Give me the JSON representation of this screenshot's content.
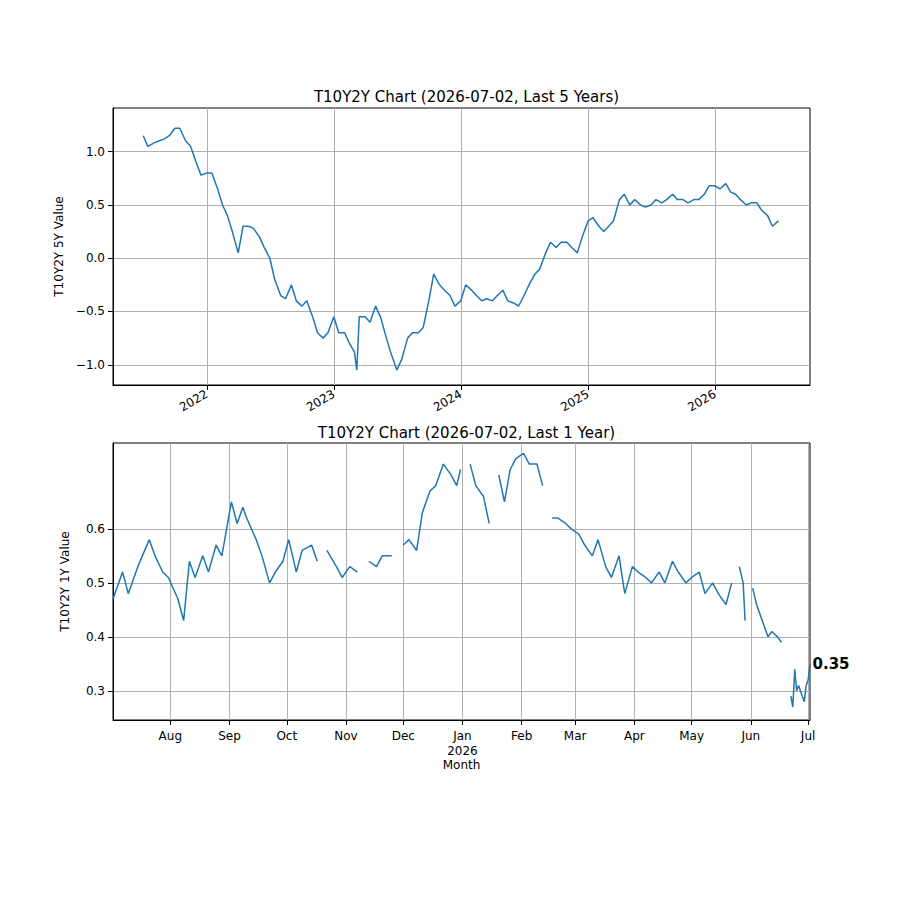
{
  "chart_data": [
    {
      "type": "line",
      "title": "T10Y2Y Chart (2026-07-02, Last 5 Years)",
      "y_label": "T10Y2Y 5Y Value",
      "color": "#1f77b4",
      "grid": true,
      "xlim": [
        "2021-04-06",
        "2026-10-01"
      ],
      "xticks": [
        {
          "value": "2022-01-01",
          "label": "2022"
        },
        {
          "value": "2023-01-01",
          "label": "2023"
        },
        {
          "value": "2024-01-01",
          "label": "2024"
        },
        {
          "value": "2025-01-01",
          "label": "2025"
        },
        {
          "value": "2026-01-01",
          "label": "2026"
        }
      ],
      "ylim": [
        -1.19,
        1.41
      ],
      "yticks": [
        {
          "value": -1.0,
          "label": "−1.0"
        },
        {
          "value": -0.5,
          "label": "−0.5"
        },
        {
          "value": 0.0,
          "label": "0.0"
        },
        {
          "value": 0.5,
          "label": "0.5"
        },
        {
          "value": 1.0,
          "label": "1.0"
        }
      ],
      "x": [
        "2021-07-02",
        "2021-07-15",
        "2021-08-01",
        "2021-08-15",
        "2021-09-01",
        "2021-09-15",
        "2021-10-01",
        "2021-10-15",
        "2021-11-01",
        "2021-11-15",
        "2021-12-01",
        "2021-12-15",
        "2022-01-01",
        "2022-01-15",
        "2022-02-01",
        "2022-02-15",
        "2022-03-01",
        "2022-03-15",
        "2022-04-01",
        "2022-04-15",
        "2022-05-01",
        "2022-05-15",
        "2022-06-01",
        "2022-06-15",
        "2022-07-01",
        "2022-07-15",
        "2022-08-01",
        "2022-08-15",
        "2022-09-01",
        "2022-09-15",
        "2022-10-01",
        "2022-10-15",
        "2022-11-01",
        "2022-11-15",
        "2022-12-01",
        "2022-12-15",
        "2023-01-01",
        "2023-01-15",
        "2023-02-01",
        "2023-02-15",
        "2023-03-01",
        "2023-03-08",
        "2023-03-15",
        "2023-04-01",
        "2023-04-15",
        "2023-05-01",
        "2023-05-15",
        "2023-06-01",
        "2023-06-15",
        "2023-07-01",
        "2023-07-15",
        "2023-08-01",
        "2023-08-15",
        "2023-09-01",
        "2023-09-15",
        "2023-10-01",
        "2023-10-15",
        "2023-11-01",
        "2023-11-15",
        "2023-12-01",
        "2023-12-15",
        "2024-01-01",
        "2024-01-15",
        "2024-02-01",
        "2024-02-15",
        "2024-03-01",
        "2024-03-15",
        "2024-04-01",
        "2024-04-15",
        "2024-05-01",
        "2024-05-15",
        "2024-06-01",
        "2024-06-15",
        "2024-07-01",
        "2024-07-15",
        "2024-08-01",
        "2024-08-15",
        "2024-09-01",
        "2024-09-15",
        "2024-10-01",
        "2024-10-15",
        "2024-11-01",
        "2024-11-15",
        "2024-12-01",
        "2024-12-15",
        "2025-01-01",
        "2025-01-15",
        "2025-02-01",
        "2025-02-15",
        "2025-03-01",
        "2025-03-15",
        "2025-04-01",
        "2025-04-15",
        "2025-05-01",
        "2025-05-15",
        "2025-06-01",
        "2025-06-15",
        "2025-07-01",
        "2025-07-15",
        "2025-08-01",
        "2025-08-15",
        "2025-09-01",
        "2025-09-15",
        "2025-10-01",
        "2025-10-15",
        "2025-11-01",
        "2025-11-15",
        "2025-12-01",
        "2025-12-15",
        "2026-01-01",
        "2026-01-15",
        "2026-02-01",
        "2026-02-15",
        "2026-03-01",
        "2026-03-15",
        "2026-04-01",
        "2026-04-15",
        "2026-05-01",
        "2026-05-15",
        "2026-06-01",
        "2026-06-15",
        "2026-07-02"
      ],
      "values": [
        1.15,
        1.05,
        1.08,
        1.1,
        1.12,
        1.15,
        1.22,
        1.22,
        1.1,
        1.05,
        0.9,
        0.78,
        0.8,
        0.8,
        0.65,
        0.5,
        0.4,
        0.25,
        0.05,
        0.3,
        0.3,
        0.28,
        0.2,
        0.1,
        0.0,
        -0.2,
        -0.35,
        -0.38,
        -0.25,
        -0.4,
        -0.45,
        -0.4,
        -0.55,
        -0.7,
        -0.75,
        -0.7,
        -0.55,
        -0.7,
        -0.7,
        -0.8,
        -0.88,
        -1.05,
        -0.55,
        -0.55,
        -0.6,
        -0.45,
        -0.55,
        -0.75,
        -0.9,
        -1.05,
        -0.95,
        -0.75,
        -0.7,
        -0.7,
        -0.65,
        -0.4,
        -0.15,
        -0.25,
        -0.3,
        -0.35,
        -0.45,
        -0.4,
        -0.25,
        -0.3,
        -0.35,
        -0.4,
        -0.38,
        -0.4,
        -0.35,
        -0.3,
        -0.4,
        -0.42,
        -0.45,
        -0.35,
        -0.25,
        -0.15,
        -0.1,
        0.05,
        0.15,
        0.1,
        0.15,
        0.15,
        0.1,
        0.05,
        0.2,
        0.35,
        0.38,
        0.3,
        0.25,
        0.3,
        0.35,
        0.55,
        0.6,
        0.5,
        0.55,
        0.5,
        0.48,
        0.5,
        0.55,
        0.52,
        0.55,
        0.6,
        0.55,
        0.55,
        0.52,
        0.55,
        0.55,
        0.6,
        0.68,
        0.68,
        0.65,
        0.7,
        0.62,
        0.6,
        0.55,
        0.5,
        0.52,
        0.52,
        0.45,
        0.4,
        0.3,
        0.35
      ]
    },
    {
      "type": "line",
      "title": "T10Y2Y Chart (2026-07-02, Last 1 Year)",
      "x_label": "Month",
      "y_label": "T10Y2Y 1Y Value",
      "color": "#1f77b4",
      "grid": true,
      "xlim": [
        "2025-07-02",
        "2026-07-02"
      ],
      "xticks": [
        {
          "value": "2025-08-01",
          "label": "Aug"
        },
        {
          "value": "2025-09-01",
          "label": "Sep"
        },
        {
          "value": "2025-10-01",
          "label": "Oct"
        },
        {
          "value": "2025-11-01",
          "label": "Nov"
        },
        {
          "value": "2025-12-01",
          "label": "Dec"
        },
        {
          "value": "2026-01-01",
          "label": "Jan\n2026"
        },
        {
          "value": "2026-02-01",
          "label": "Feb"
        },
        {
          "value": "2026-03-01",
          "label": "Mar"
        },
        {
          "value": "2026-04-01",
          "label": "Apr"
        },
        {
          "value": "2026-05-01",
          "label": "May"
        },
        {
          "value": "2026-06-01",
          "label": "Jun"
        },
        {
          "value": "2026-07-01",
          "label": "Jul"
        }
      ],
      "ylim": [
        0.246,
        0.759
      ],
      "yticks": [
        0.3,
        0.4,
        0.5,
        0.6
      ],
      "annotations": [
        {
          "x": "2026-07-02",
          "y": 0.35,
          "label": "0.35"
        }
      ],
      "x": [
        "2025-07-02",
        "2025-07-07",
        "2025-07-10",
        "2025-07-15",
        "2025-07-21",
        "2025-07-24",
        "2025-07-28",
        "2025-07-31",
        "2025-08-05",
        "2025-08-08",
        "2025-08-11",
        "2025-08-14",
        "2025-08-18",
        "2025-08-21",
        "2025-08-25",
        "2025-08-28",
        "2025-08-29",
        "2025-09-02",
        "2025-09-05",
        "2025-09-08",
        "2025-09-10",
        "2025-09-15",
        "2025-09-18",
        "2025-09-22",
        "2025-09-25",
        "2025-09-29",
        "2025-10-02",
        "2025-10-06",
        "2025-10-09",
        "2025-10-14",
        "2025-10-17",
        "2025-10-20",
        "2025-10-22",
        "2025-10-27",
        "2025-10-30",
        "2025-11-03",
        "2025-11-07",
        "2025-11-11",
        "2025-11-13",
        "2025-11-17",
        "2025-11-20",
        "2025-11-25",
        "2025-11-28",
        "2025-12-01",
        "2025-12-04",
        "2025-12-08",
        "2025-12-11",
        "2025-12-15",
        "2025-12-18",
        "2025-12-22",
        "2025-12-26",
        "2025-12-29",
        "2025-12-31",
        "2026-01-02",
        "2026-01-05",
        "2026-01-08",
        "2026-01-12",
        "2026-01-15",
        "2026-01-19",
        "2026-01-20",
        "2026-01-23",
        "2026-01-26",
        "2026-01-29",
        "2026-02-02",
        "2026-02-05",
        "2026-02-09",
        "2026-02-12",
        "2026-02-16",
        "2026-02-17",
        "2026-02-20",
        "2026-02-24",
        "2026-02-27",
        "2026-03-03",
        "2026-03-06",
        "2026-03-10",
        "2026-03-13",
        "2026-03-17",
        "2026-03-20",
        "2026-03-24",
        "2026-03-27",
        "2026-03-31",
        "2026-04-03",
        "2026-04-07",
        "2026-04-10",
        "2026-04-14",
        "2026-04-17",
        "2026-04-21",
        "2026-04-24",
        "2026-04-28",
        "2026-05-01",
        "2026-05-05",
        "2026-05-08",
        "2026-05-12",
        "2026-05-15",
        "2026-05-19",
        "2026-05-22",
        "2026-05-25",
        "2026-05-26",
        "2026-05-28",
        "2026-05-29",
        "2026-06-01",
        "2026-06-02",
        "2026-06-04",
        "2026-06-08",
        "2026-06-10",
        "2026-06-12",
        "2026-06-15",
        "2026-06-17",
        "2026-06-19",
        "2026-06-22",
        "2026-06-23",
        "2026-06-24",
        "2026-06-25",
        "2026-06-26",
        "2026-06-29",
        "2026-06-30",
        "2026-07-01",
        "2026-07-02"
      ],
      "values": [
        0.47,
        0.52,
        0.48,
        0.53,
        0.58,
        0.55,
        0.52,
        0.51,
        0.47,
        0.43,
        0.54,
        0.51,
        0.55,
        0.52,
        0.57,
        0.55,
        0.57,
        0.65,
        0.61,
        0.64,
        0.62,
        0.58,
        0.55,
        0.5,
        0.52,
        0.54,
        0.58,
        0.52,
        0.56,
        0.57,
        0.54,
        null,
        0.56,
        0.53,
        0.51,
        0.53,
        0.52,
        null,
        0.54,
        0.53,
        0.55,
        0.55,
        null,
        0.57,
        0.58,
        0.56,
        0.63,
        0.67,
        0.68,
        0.72,
        0.7,
        0.68,
        0.71,
        null,
        0.72,
        0.68,
        0.66,
        0.61,
        null,
        0.7,
        0.65,
        0.71,
        0.73,
        0.74,
        0.72,
        0.72,
        0.68,
        null,
        0.62,
        0.62,
        0.61,
        0.6,
        0.59,
        0.57,
        0.55,
        0.58,
        0.53,
        0.51,
        0.55,
        0.48,
        0.53,
        0.52,
        0.51,
        0.5,
        0.52,
        0.5,
        0.54,
        0.52,
        0.5,
        0.51,
        0.52,
        0.48,
        0.5,
        0.48,
        0.46,
        0.5,
        null,
        0.53,
        0.5,
        0.43,
        null,
        0.49,
        0.46,
        0.42,
        0.4,
        0.41,
        0.4,
        0.39,
        null,
        0.29,
        0.27,
        0.34,
        0.3,
        0.31,
        0.28,
        0.31,
        0.32,
        0.35
      ]
    }
  ]
}
